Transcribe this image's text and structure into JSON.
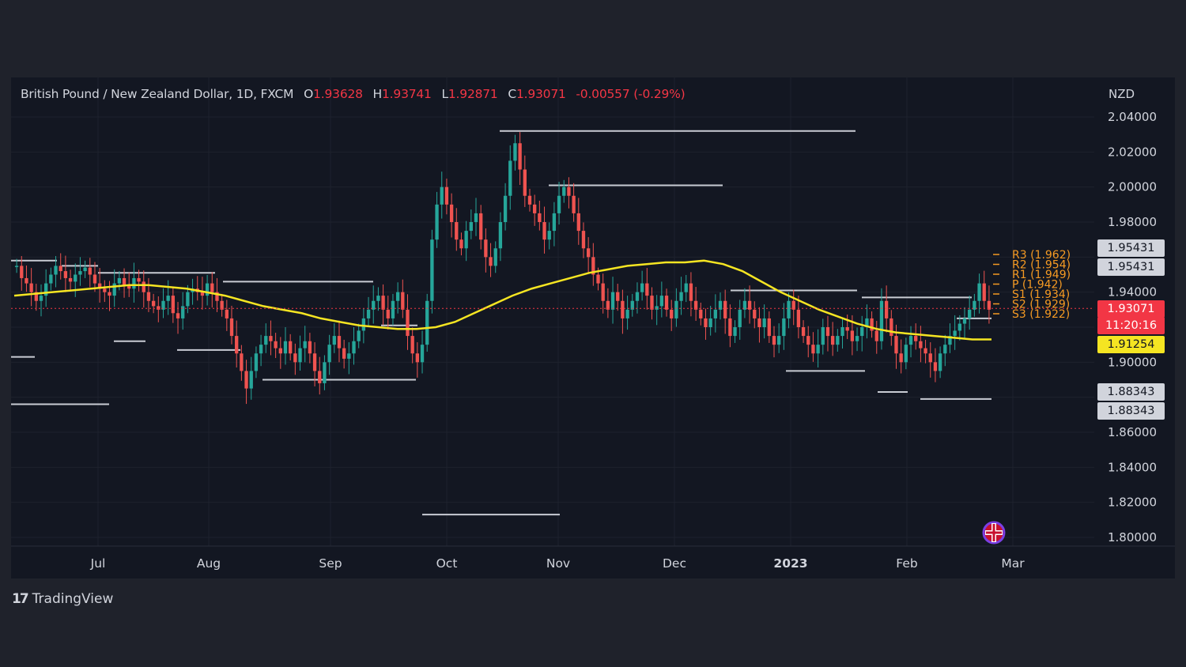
{
  "header": {
    "symbol": "British Pound / New Zealand Dollar, 1D, FXCM",
    "o_label": "O",
    "o_value": "1.93628",
    "h_label": "H",
    "h_value": "1.93741",
    "l_label": "L",
    "l_value": "1.92871",
    "c_label": "C",
    "c_value": "1.93071",
    "change": "-0.00557 (-0.29%)"
  },
  "currency": "NZD",
  "price_tags": {
    "tag1": "1.95431",
    "tag2": "1.95431",
    "last_price": "1.93071",
    "countdown": "11:20:16",
    "ma_value": "1.91254",
    "tag3": "1.88343",
    "tag4": "1.88343"
  },
  "branding": {
    "logo_text": "TradingView"
  },
  "colors": {
    "background": "#131722",
    "up_candle": "#26a69a",
    "down_candle": "#ef5350",
    "moving_average": "#f5e522",
    "pivot_lines": "#f59a23",
    "last_price": "#f23645",
    "grid": "#1e222d"
  },
  "chart_data": {
    "type": "candlestick",
    "y_axis": {
      "ticks": [
        2.04,
        2.02,
        2.0,
        1.98,
        1.96,
        1.94,
        1.92,
        1.9,
        1.88,
        1.86,
        1.84,
        1.82,
        1.8
      ],
      "tick_labels": [
        "2.04000",
        "2.02000",
        "2.00000",
        "1.98000",
        "",
        "1.94000",
        "",
        "1.90000",
        "",
        "1.86000",
        "1.84000",
        "1.82000",
        "1.80000"
      ],
      "range": [
        1.79,
        2.05
      ]
    },
    "x_axis": {
      "labels": [
        "Jul",
        "Aug",
        "Sep",
        "Oct",
        "Nov",
        "Dec",
        "2023",
        "Feb",
        "Mar"
      ]
    },
    "grid": true,
    "close_series_approx": [
      1.955,
      1.948,
      1.945,
      1.94,
      1.935,
      1.938,
      1.945,
      1.95,
      1.955,
      1.952,
      1.948,
      1.946,
      1.95,
      1.952,
      1.954,
      1.95,
      1.945,
      1.942,
      1.94,
      1.938,
      1.945,
      1.948,
      1.944,
      1.942,
      1.948,
      1.946,
      1.94,
      1.935,
      1.932,
      1.93,
      1.935,
      1.938,
      1.928,
      1.925,
      1.932,
      1.94,
      1.942,
      1.94,
      1.938,
      1.945,
      1.94,
      1.935,
      1.93,
      1.925,
      1.915,
      1.905,
      1.895,
      1.885,
      1.895,
      1.905,
      1.91,
      1.915,
      1.912,
      1.908,
      1.905,
      1.912,
      1.905,
      1.9,
      1.908,
      1.912,
      1.905,
      1.895,
      1.888,
      1.9,
      1.91,
      1.915,
      1.908,
      1.902,
      1.905,
      1.912,
      1.918,
      1.925,
      1.93,
      1.935,
      1.938,
      1.93,
      1.925,
      1.935,
      1.94,
      1.93,
      1.915,
      1.905,
      1.9,
      1.91,
      1.935,
      1.97,
      1.99,
      2.0,
      1.99,
      1.98,
      1.97,
      1.965,
      1.975,
      1.98,
      1.985,
      1.97,
      1.96,
      1.955,
      1.965,
      1.98,
      1.995,
      2.015,
      2.025,
      2.01,
      1.995,
      1.99,
      1.985,
      1.98,
      1.97,
      1.975,
      1.985,
      1.995,
      2.0,
      1.995,
      1.985,
      1.975,
      1.965,
      1.96,
      1.95,
      1.945,
      1.935,
      1.93,
      1.94,
      1.935,
      1.925,
      1.93,
      1.935,
      1.94,
      1.945,
      1.938,
      1.93,
      1.932,
      1.938,
      1.93,
      1.925,
      1.935,
      1.94,
      1.945,
      1.935,
      1.93,
      1.925,
      1.92,
      1.925,
      1.93,
      1.935,
      1.925,
      1.915,
      1.92,
      1.93,
      1.935,
      1.93,
      1.925,
      1.92,
      1.925,
      1.915,
      1.91,
      1.915,
      1.925,
      1.935,
      1.93,
      1.92,
      1.915,
      1.91,
      1.905,
      1.91,
      1.92,
      1.915,
      1.91,
      1.915,
      1.92,
      1.918,
      1.912,
      1.915,
      1.92,
      1.925,
      1.918,
      1.912,
      1.935,
      1.925,
      1.915,
      1.905,
      1.9,
      1.91,
      1.915,
      1.912,
      1.908,
      1.905,
      1.9,
      1.895,
      1.905,
      1.91,
      1.915,
      1.918,
      1.922,
      1.925,
      1.93,
      1.935,
      1.945,
      1.935,
      1.93
    ],
    "moving_average_approx": [
      1.938,
      1.939,
      1.94,
      1.941,
      1.942,
      1.943,
      1.944,
      1.944,
      1.943,
      1.942,
      1.94,
      1.938,
      1.935,
      1.932,
      1.93,
      1.928,
      1.925,
      1.923,
      1.921,
      1.92,
      1.919,
      1.919,
      1.92,
      1.923,
      1.928,
      1.933,
      1.938,
      1.942,
      1.945,
      1.948,
      1.951,
      1.953,
      1.955,
      1.956,
      1.957,
      1.957,
      1.958,
      1.956,
      1.952,
      1.946,
      1.94,
      1.935,
      1.93,
      1.926,
      1.922,
      1.919,
      1.917,
      1.916,
      1.915,
      1.914,
      1.913,
      1.913
    ],
    "pivot_levels": [
      {
        "name": "R3",
        "value": 1.962,
        "label": "R3 (1.962)"
      },
      {
        "name": "R2",
        "value": 1.954,
        "label": "R2 (1.954)"
      },
      {
        "name": "R1",
        "value": 1.949,
        "label": "R1 (1.949)"
      },
      {
        "name": "P",
        "value": 1.942,
        "label": "P (1.942)"
      },
      {
        "name": "S1",
        "value": 1.934,
        "label": "S1 (1.934)"
      },
      {
        "name": "S2",
        "value": 1.929,
        "label": "S2 (1.929)"
      },
      {
        "name": "S3",
        "value": 1.922,
        "label": "S3 (1.922)"
      }
    ],
    "horizontal_levels": [
      {
        "y": 2.032
      },
      {
        "y": 2.001
      },
      {
        "y": 1.958
      },
      {
        "y": 1.955
      },
      {
        "y": 1.951
      },
      {
        "y": 1.946
      },
      {
        "y": 1.941
      },
      {
        "y": 1.937
      },
      {
        "y": 1.925
      },
      {
        "y": 1.921
      },
      {
        "y": 1.912
      },
      {
        "y": 1.907
      },
      {
        "y": 1.903
      },
      {
        "y": 1.895
      },
      {
        "y": 1.89
      },
      {
        "y": 1.883
      },
      {
        "y": 1.879
      },
      {
        "y": 1.876
      },
      {
        "y": 1.813
      }
    ],
    "last_price": 1.93071
  }
}
